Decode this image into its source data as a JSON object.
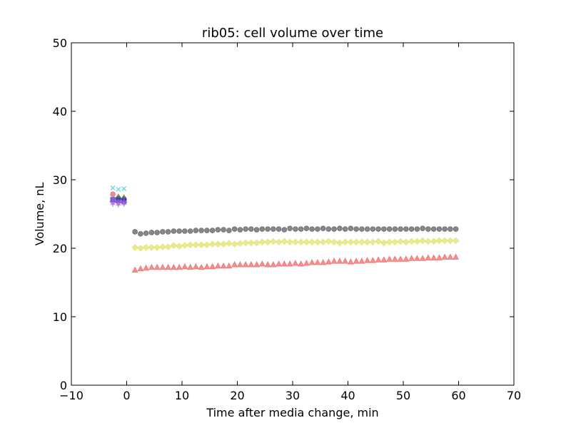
{
  "chart_data": {
    "type": "scatter",
    "title": "rib05: cell volume over time",
    "xlabel": "Time after media change, min",
    "ylabel": "Volume, nL",
    "xlim": [
      -10,
      70
    ],
    "ylim": [
      0,
      50
    ],
    "xticks": [
      "−10",
      "0",
      "10",
      "20",
      "30",
      "40",
      "50",
      "60",
      "70"
    ],
    "yticks": [
      "0",
      "10",
      "20",
      "30",
      "40",
      "50"
    ],
    "grid": false,
    "legend": "none",
    "pre_change_series": [
      {
        "marker": "x",
        "color": "#5ecfe0",
        "x": [
          -2.5,
          -1.5,
          -0.5
        ],
        "y": [
          28.8,
          28.6,
          28.7
        ]
      },
      {
        "marker": "circle",
        "color": "#e06060",
        "x": [
          -2.5
        ],
        "y": [
          27.9
        ]
      },
      {
        "marker": "triangle",
        "color": "#888833",
        "x": [
          -1.5,
          -0.5
        ],
        "y": [
          27.5,
          27.4
        ]
      },
      {
        "marker": "circle",
        "color": "#555555",
        "x": [
          -1.5,
          -0.5
        ],
        "y": [
          27.3,
          27.2
        ]
      },
      {
        "marker": "square",
        "color": "#2233cc",
        "x": [
          -2.5,
          -1.5,
          -0.5
        ],
        "y": [
          27.1,
          27.0,
          26.9
        ]
      },
      {
        "marker": "diamond",
        "color": "#9955cc",
        "x": [
          -2.5,
          -1.5,
          -0.5
        ],
        "y": [
          26.8,
          26.7,
          26.7
        ]
      },
      {
        "marker": "plus",
        "color": "#b37de0",
        "x": [
          -2.5,
          -1.5,
          -0.5
        ],
        "y": [
          26.4,
          26.3,
          26.4
        ]
      }
    ],
    "series": [
      {
        "marker": "circle",
        "color": "#555555",
        "x": [
          1.5,
          2.5,
          3.5,
          4.5,
          5.5,
          6.5,
          7.5,
          8.5,
          9.5,
          10.5,
          11.5,
          12.5,
          13.5,
          14.5,
          15.5,
          16.5,
          17.5,
          18.5,
          19.5,
          20.5,
          21.5,
          22.5,
          23.5,
          24.5,
          25.5,
          26.5,
          27.5,
          28.5,
          29.5,
          30.5,
          31.5,
          32.5,
          33.5,
          34.5,
          35.5,
          36.5,
          37.5,
          38.5,
          39.5,
          40.5,
          41.5,
          42.5,
          43.5,
          44.5,
          45.5,
          46.5,
          47.5,
          48.5,
          49.5,
          50.5,
          51.5,
          52.5,
          53.5,
          54.5,
          55.5,
          56.5,
          57.5,
          58.5,
          59.5
        ],
        "y": [
          22.4,
          22.1,
          22.2,
          22.3,
          22.3,
          22.4,
          22.4,
          22.5,
          22.5,
          22.5,
          22.5,
          22.6,
          22.6,
          22.6,
          22.6,
          22.7,
          22.7,
          22.6,
          22.8,
          22.7,
          22.8,
          22.8,
          22.7,
          22.8,
          22.8,
          22.8,
          22.8,
          22.7,
          22.9,
          22.8,
          22.8,
          22.9,
          22.8,
          22.8,
          22.9,
          22.8,
          22.8,
          22.9,
          22.8,
          22.9,
          22.8,
          22.8,
          22.8,
          22.8,
          22.8,
          22.8,
          22.8,
          22.8,
          22.8,
          22.8,
          22.8,
          22.8,
          22.9,
          22.8,
          22.8,
          22.8,
          22.8,
          22.8,
          22.8
        ]
      },
      {
        "marker": "diamond",
        "color": "#e0e060",
        "x": [
          1.5,
          2.5,
          3.5,
          4.5,
          5.5,
          6.5,
          7.5,
          8.5,
          9.5,
          10.5,
          11.5,
          12.5,
          13.5,
          14.5,
          15.5,
          16.5,
          17.5,
          18.5,
          19.5,
          20.5,
          21.5,
          22.5,
          23.5,
          24.5,
          25.5,
          26.5,
          27.5,
          28.5,
          29.5,
          30.5,
          31.5,
          32.5,
          33.5,
          34.5,
          35.5,
          36.5,
          37.5,
          38.5,
          39.5,
          40.5,
          41.5,
          42.5,
          43.5,
          44.5,
          45.5,
          46.5,
          47.5,
          48.5,
          49.5,
          50.5,
          51.5,
          52.5,
          53.5,
          54.5,
          55.5,
          56.5,
          57.5,
          58.5,
          59.5
        ],
        "y": [
          20.1,
          20.0,
          20.1,
          20.1,
          20.1,
          20.2,
          20.2,
          20.4,
          20.3,
          20.4,
          20.5,
          20.5,
          20.5,
          20.5,
          20.6,
          20.6,
          20.6,
          20.7,
          20.6,
          20.7,
          20.8,
          20.8,
          20.8,
          20.9,
          20.9,
          21.0,
          20.9,
          21.0,
          20.9,
          20.9,
          20.9,
          20.9,
          20.9,
          20.9,
          20.9,
          21.0,
          20.9,
          20.8,
          20.9,
          20.9,
          20.9,
          20.9,
          20.9,
          20.9,
          21.0,
          20.8,
          20.9,
          20.9,
          21.0,
          20.9,
          21.0,
          21.0,
          21.1,
          21.0,
          21.0,
          21.1,
          21.1,
          21.1,
          21.1
        ]
      },
      {
        "marker": "triangle",
        "color": "#f06060",
        "x": [
          1.5,
          2.5,
          3.5,
          4.5,
          5.5,
          6.5,
          7.5,
          8.5,
          9.5,
          10.5,
          11.5,
          12.5,
          13.5,
          14.5,
          15.5,
          16.5,
          17.5,
          18.5,
          19.5,
          20.5,
          21.5,
          22.5,
          23.5,
          24.5,
          25.5,
          26.5,
          27.5,
          28.5,
          29.5,
          30.5,
          31.5,
          32.5,
          33.5,
          34.5,
          35.5,
          36.5,
          37.5,
          38.5,
          39.5,
          40.5,
          41.5,
          42.5,
          43.5,
          44.5,
          45.5,
          46.5,
          47.5,
          48.5,
          49.5,
          50.5,
          51.5,
          52.5,
          53.5,
          54.5,
          55.5,
          56.5,
          57.5,
          58.5,
          59.5
        ],
        "y": [
          16.8,
          17.0,
          17.1,
          17.2,
          17.2,
          17.2,
          17.2,
          17.2,
          17.2,
          17.3,
          17.2,
          17.3,
          17.2,
          17.3,
          17.3,
          17.4,
          17.4,
          17.4,
          17.6,
          17.6,
          17.6,
          17.6,
          17.6,
          17.7,
          17.6,
          17.6,
          17.7,
          17.7,
          17.7,
          17.8,
          17.7,
          17.8,
          17.9,
          17.9,
          17.9,
          18.0,
          18.1,
          18.1,
          18.1,
          18.0,
          18.1,
          18.1,
          18.2,
          18.2,
          18.3,
          18.3,
          18.4,
          18.4,
          18.4,
          18.4,
          18.5,
          18.5,
          18.5,
          18.6,
          18.6,
          18.6,
          18.7,
          18.7,
          18.7
        ]
      }
    ]
  }
}
